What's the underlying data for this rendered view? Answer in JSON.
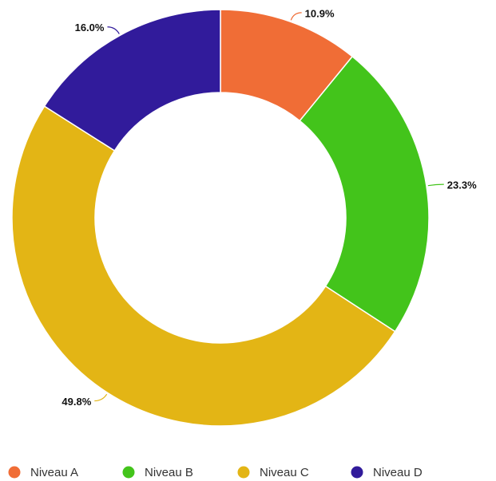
{
  "chart_data": {
    "type": "donut",
    "categories": [
      "Niveau A",
      "Niveau B",
      "Niveau C",
      "Niveau D"
    ],
    "values": [
      10.9,
      23.3,
      49.8,
      16.0
    ],
    "value_labels": [
      "10.9%",
      "23.3%",
      "49.8%",
      "16.0%"
    ],
    "colors": [
      "#f06d36",
      "#43c41b",
      "#e3b515",
      "#311b9b"
    ],
    "legend": "bottom"
  }
}
